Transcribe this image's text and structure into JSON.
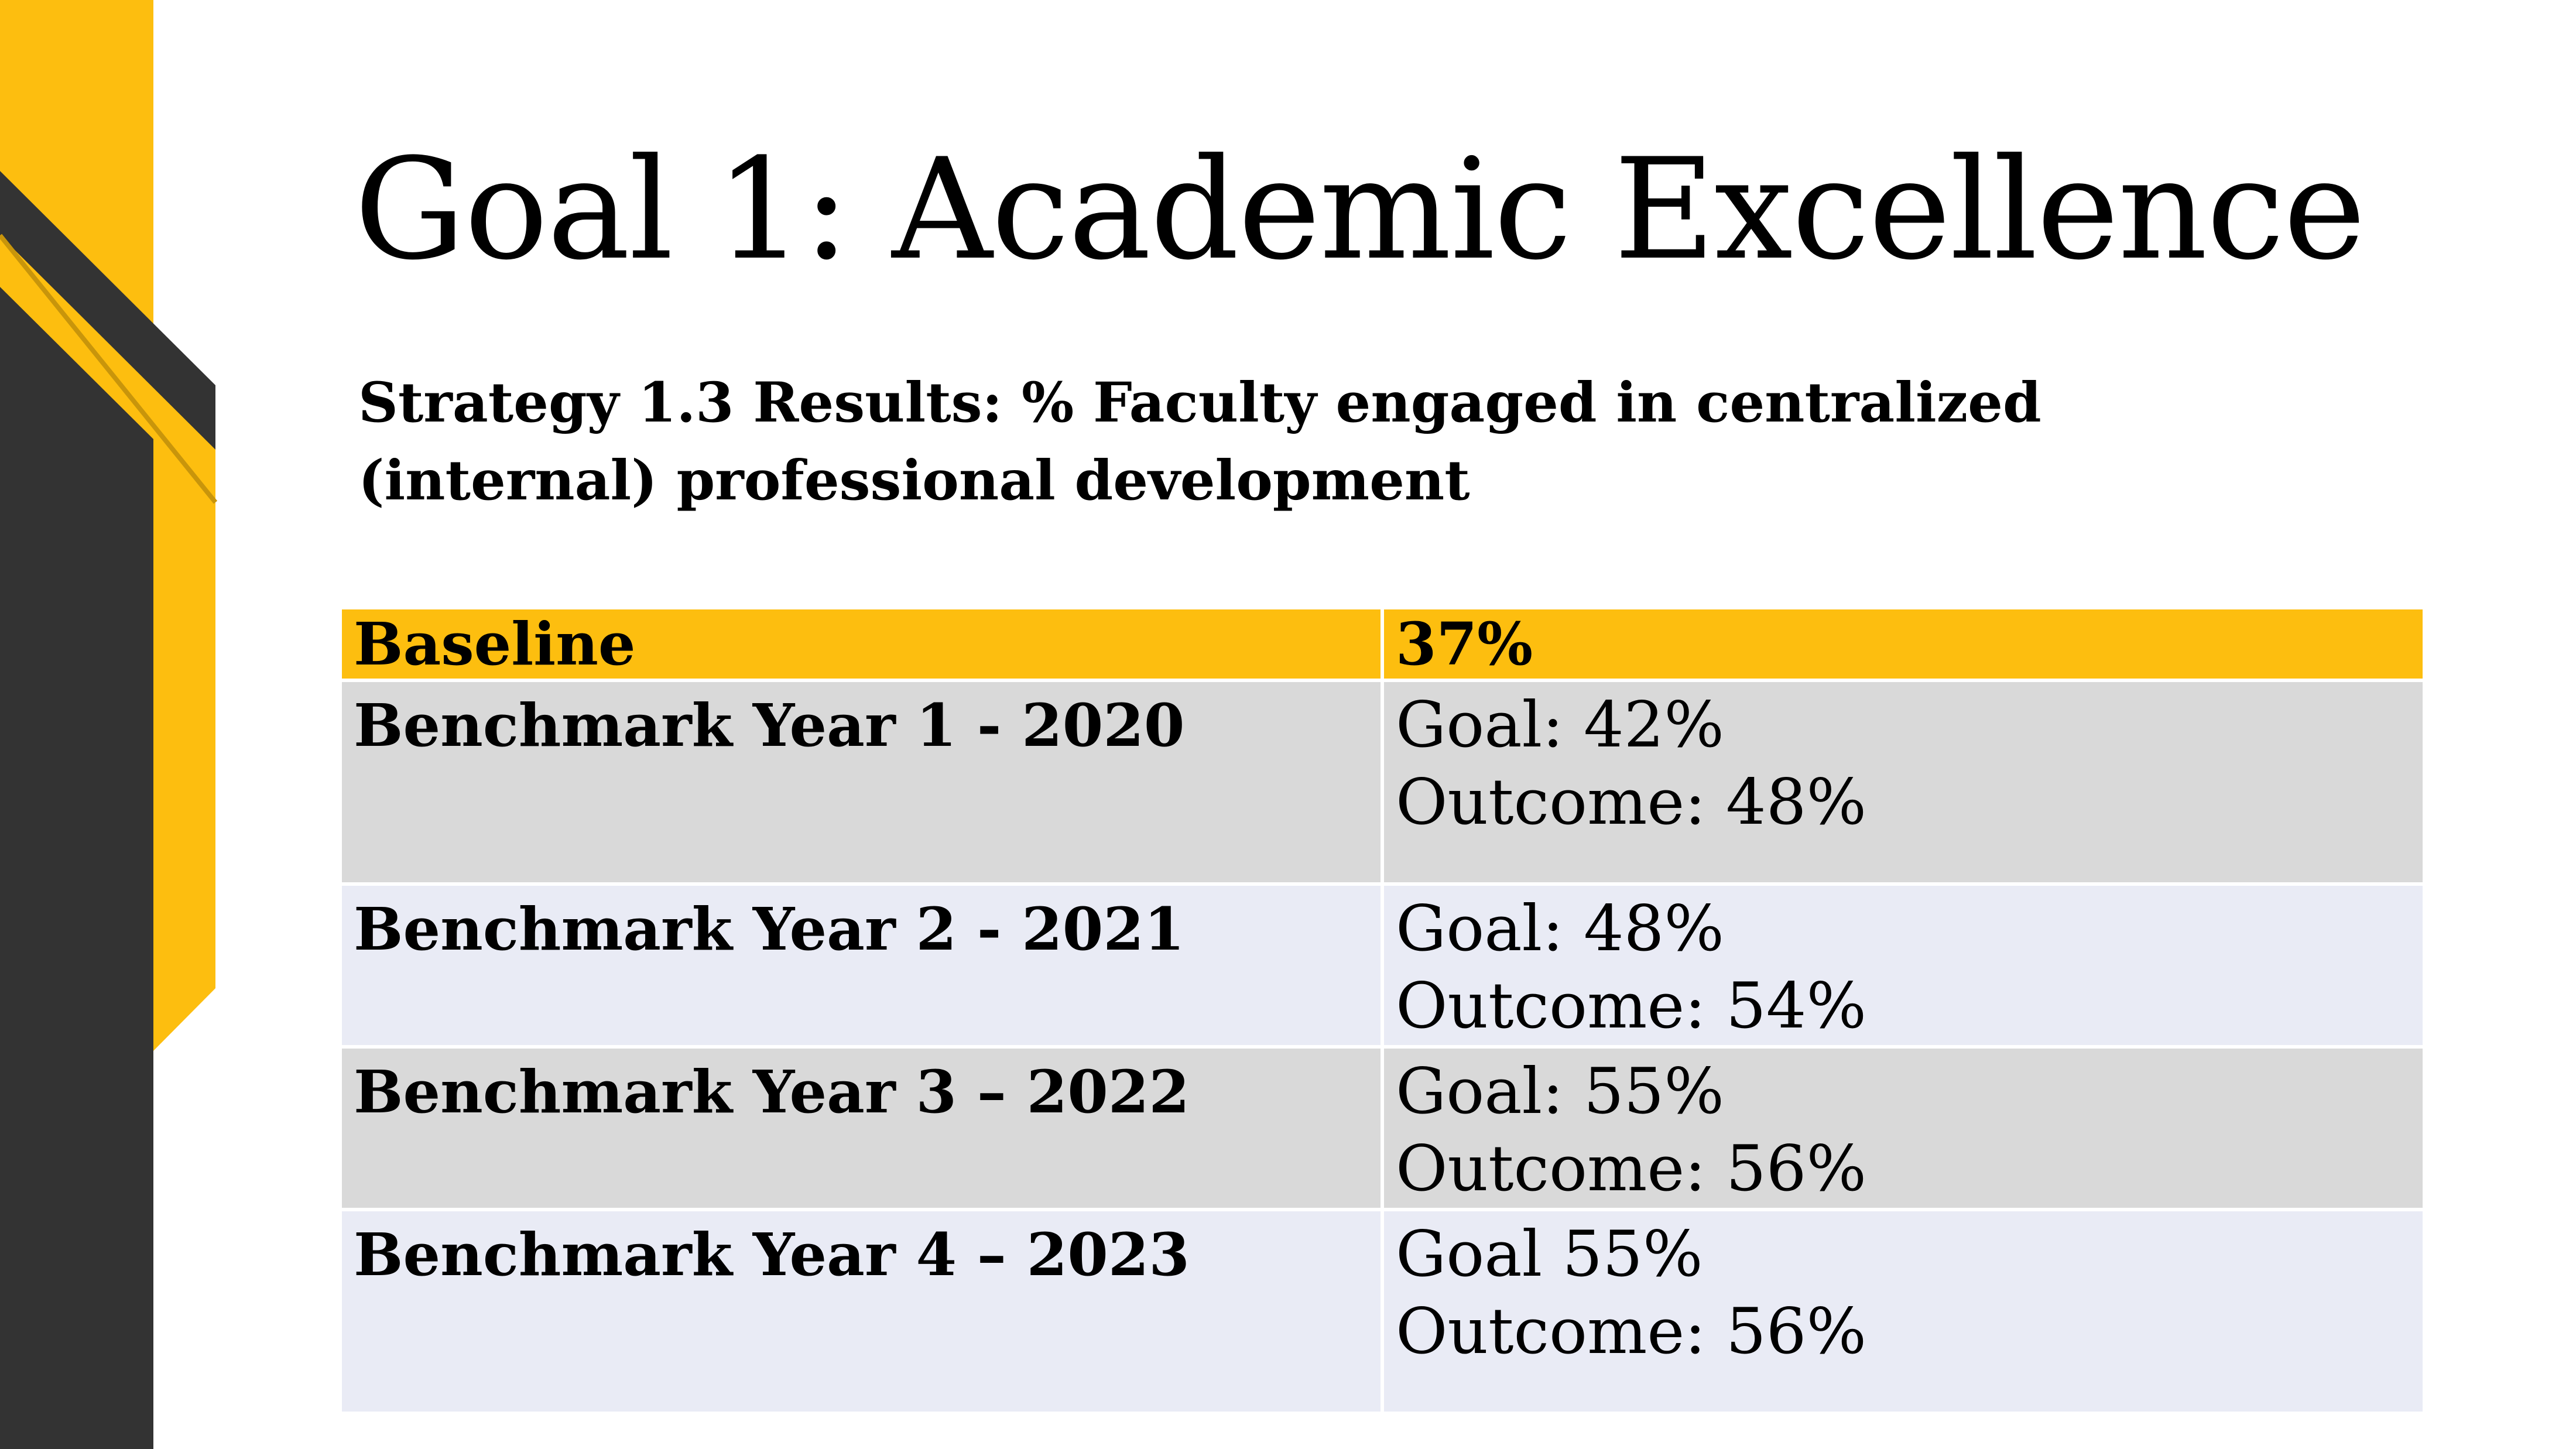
{
  "slide": {
    "title": "Goal 1:  Academic Excellence",
    "subtitle": "Strategy 1.3 Results:  % Faculty engaged in centralized (internal) professional development"
  },
  "colors": {
    "accent": "#fdbe0f",
    "dark_band": "#333333",
    "row_gray": "#d9d9d9",
    "row_light": "#e9ebf5"
  },
  "table": {
    "header": {
      "label": "Baseline",
      "value": "37%"
    },
    "rows": [
      {
        "label": "Benchmark Year 1 - 2020",
        "goal": "Goal: 42%",
        "outcome": "Outcome: 48%"
      },
      {
        "label": "Benchmark Year 2 - 2021",
        "goal": "Goal: 48%",
        "outcome": "Outcome: 54%"
      },
      {
        "label": "Benchmark Year 3 – 2022",
        "goal": "Goal:  55%",
        "outcome": "Outcome:  56%"
      },
      {
        "label": "Benchmark Year 4 – 2023",
        "goal": "Goal 55%",
        "outcome": "Outcome: 56%"
      }
    ]
  }
}
